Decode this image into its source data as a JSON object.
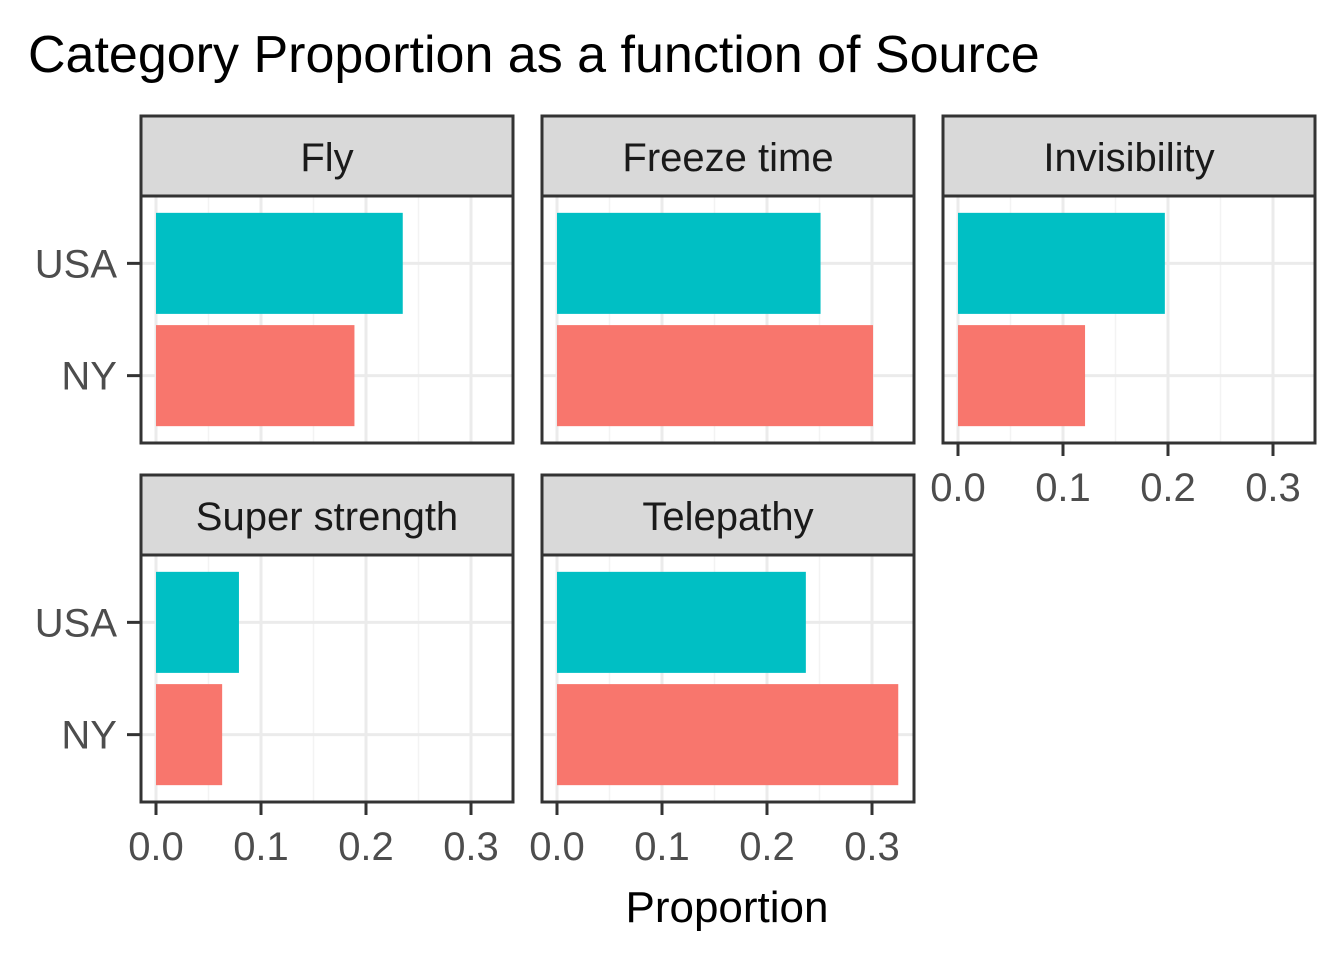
{
  "chart_data": {
    "type": "bar",
    "orientation": "horizontal",
    "title": "Category Proportion as a function of Source",
    "xlabel": "Proportion",
    "ylabel": "",
    "xlim": [
      0,
      0.34
    ],
    "x_ticks": [
      0,
      0.1,
      0.2,
      0.3
    ],
    "x_tick_labels": [
      "0.0",
      "0.1",
      "0.2",
      "0.3"
    ],
    "categories": [
      "USA",
      "NY"
    ],
    "grid": true,
    "legend": "none",
    "facet_layout": {
      "columns": 3,
      "rows": 2
    },
    "series_colors": {
      "USA": "#00BFC4",
      "NY": "#F8766D"
    },
    "facets": [
      {
        "name": "Fly",
        "values": {
          "USA": 0.235,
          "NY": 0.189
        }
      },
      {
        "name": "Freeze time",
        "values": {
          "USA": 0.251,
          "NY": 0.301
        }
      },
      {
        "name": "Invisibility",
        "values": {
          "USA": 0.197,
          "NY": 0.121
        }
      },
      {
        "name": "Super strength",
        "values": {
          "USA": 0.079,
          "NY": 0.063
        }
      },
      {
        "name": "Telepathy",
        "values": {
          "USA": 0.237,
          "NY": 0.325
        }
      }
    ]
  },
  "colors": {
    "strip_fill": "#D9D9D9",
    "panel_border": "#333333",
    "grid_major": "#EBEBEB",
    "grid_minor": "#F3F3F3",
    "axis_text": "#4D4D4D",
    "title_text": "#000000"
  }
}
